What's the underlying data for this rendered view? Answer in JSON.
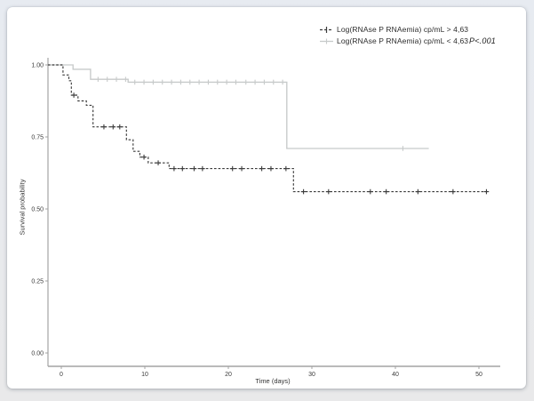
{
  "page": {
    "background_color": "#e8eaee",
    "card_background": "#ffffff"
  },
  "legend": {
    "items": [
      {
        "id": "high",
        "label": "Log(RNAse P RNAemia) cp/mL > 4,63",
        "color": "#3a3a3a",
        "line_style": "dashed",
        "marker": "plus-tick"
      },
      {
        "id": "low",
        "label": "Log(RNAse P RNAemia) cp/mL < 4,63",
        "color": "#c7caca",
        "line_style": "solid",
        "marker": "plus-tick"
      }
    ],
    "p_value": "P<.001"
  },
  "chart_data": {
    "type": "line",
    "subtype": "kaplan_meier_step",
    "title": "",
    "xlabel": "Time (days)",
    "ylabel": "Survival probability",
    "xlim": [
      -1.6,
      52.5
    ],
    "ylim": [
      0,
      1
    ],
    "xticks": [
      0,
      10,
      20,
      30,
      40,
      50
    ],
    "yticks": [
      0,
      0.25,
      0.5,
      0.75,
      1.0
    ],
    "ytick_labels": [
      "0.00",
      "0.25",
      "0.50",
      "0.75",
      "1.00"
    ],
    "grid": false,
    "legend_position": "top-right",
    "p_value": "P<.001",
    "axis_color": "#a3a3a3",
    "series": [
      {
        "name": "Log(RNAse P RNAemia) cp/mL > 4,63",
        "color": "#3a3a3a",
        "line_style": "dashed",
        "start": [
          0,
          1.0
        ],
        "steps": [
          [
            0.2,
            0.965
          ],
          [
            0.9,
            0.945
          ],
          [
            1.2,
            0.895
          ],
          [
            2.0,
            0.875
          ],
          [
            3.0,
            0.86
          ],
          [
            3.8,
            0.785
          ],
          [
            7.8,
            0.74
          ],
          [
            8.6,
            0.7
          ],
          [
            9.4,
            0.68
          ],
          [
            10.4,
            0.66
          ],
          [
            12.9,
            0.64
          ],
          [
            27.8,
            0.56
          ]
        ],
        "end_time": 51,
        "censor_times": [
          1.5,
          5.1,
          6.2,
          7.0,
          9.9,
          11.6,
          13.5,
          14.5,
          15.9,
          16.9,
          20.5,
          21.6,
          24.0,
          25.1,
          26.9,
          29.0,
          32.0,
          37.0,
          38.9,
          42.7,
          46.9,
          50.9
        ]
      },
      {
        "name": "Log(RNAse P RNAemia) cp/mL < 4,63",
        "color": "#c7caca",
        "line_style": "solid",
        "start": [
          0,
          1.0
        ],
        "steps": [
          [
            1.4,
            0.985
          ],
          [
            3.5,
            0.95
          ],
          [
            8.0,
            0.94
          ],
          [
            27.0,
            0.71
          ]
        ],
        "end_time": 44,
        "censor_times": [
          4.4,
          5.5,
          6.6,
          7.7,
          8.8,
          9.9,
          11.0,
          12.1,
          13.2,
          14.3,
          15.4,
          16.5,
          17.6,
          18.7,
          19.8,
          20.9,
          22.1,
          23.2,
          24.3,
          25.4,
          26.5,
          40.9
        ]
      }
    ]
  }
}
